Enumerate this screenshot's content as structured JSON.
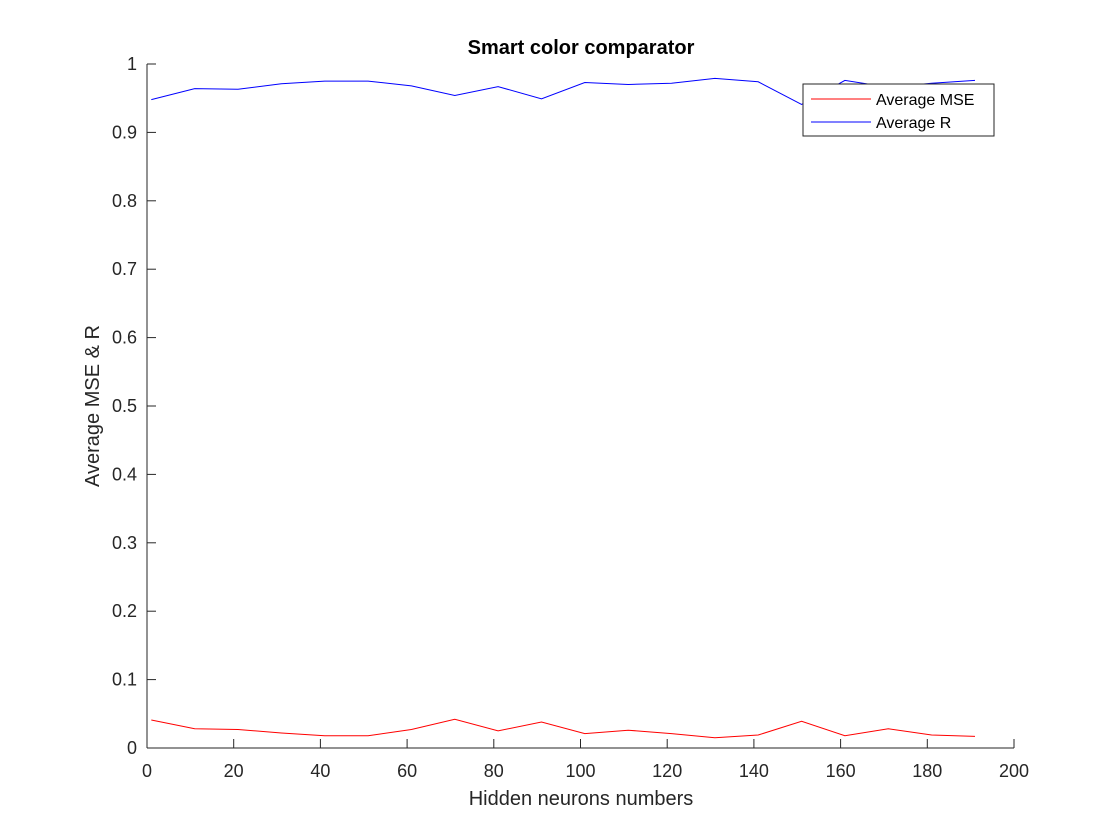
{
  "chart_data": {
    "type": "line",
    "title": "Smart color comparator",
    "xlabel": "Hidden neurons numbers",
    "ylabel": "Average MSE & R",
    "xlim": [
      0,
      200
    ],
    "ylim": [
      0,
      1
    ],
    "xticks": [
      0,
      20,
      40,
      60,
      80,
      100,
      120,
      140,
      160,
      180,
      200
    ],
    "yticks": [
      0,
      0.1,
      0.2,
      0.3,
      0.4,
      0.5,
      0.6,
      0.7,
      0.8,
      0.9,
      1
    ],
    "grid": false,
    "legend_position": "top-right",
    "x": [
      1,
      11,
      21,
      31,
      41,
      51,
      61,
      71,
      81,
      91,
      101,
      111,
      121,
      131,
      141,
      151,
      161,
      171,
      181,
      191
    ],
    "series": [
      {
        "name": "Average MSE",
        "color": "#ff0000",
        "values": [
          0.041,
          0.028,
          0.027,
          0.022,
          0.018,
          0.018,
          0.027,
          0.042,
          0.025,
          0.038,
          0.021,
          0.026,
          0.021,
          0.015,
          0.019,
          0.039,
          0.018,
          0.028,
          0.019,
          0.017
        ]
      },
      {
        "name": "Average R",
        "color": "#0000ff",
        "values": [
          0.948,
          0.964,
          0.963,
          0.971,
          0.975,
          0.975,
          0.968,
          0.954,
          0.967,
          0.949,
          0.973,
          0.97,
          0.972,
          0.979,
          0.974,
          0.941,
          0.976,
          0.966,
          0.972,
          0.976
        ]
      }
    ]
  }
}
